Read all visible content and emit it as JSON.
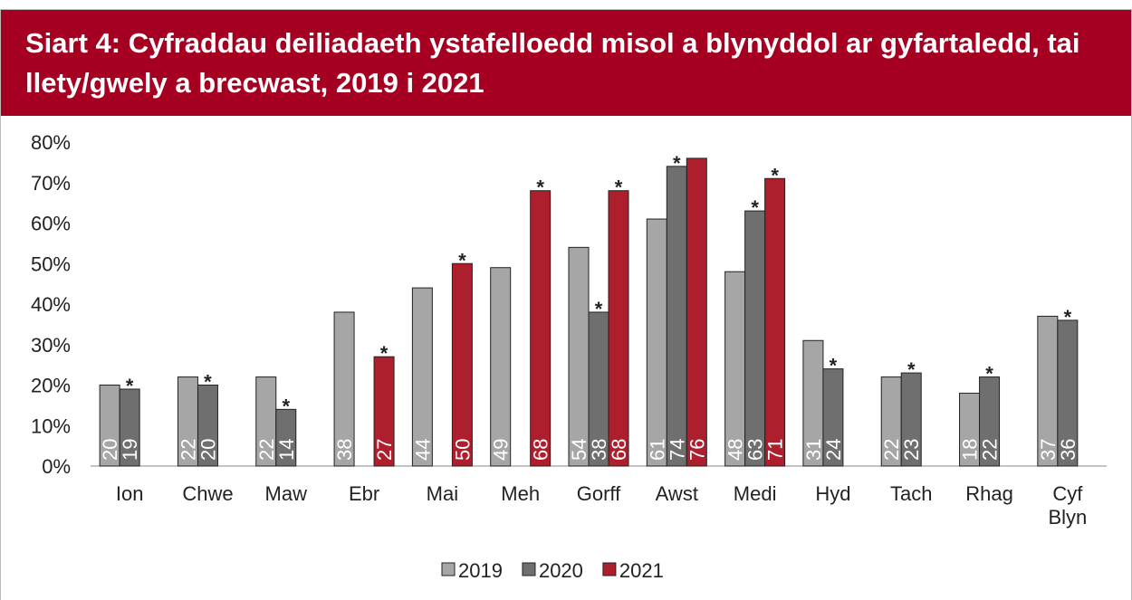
{
  "chart_data": {
    "type": "bar",
    "title": "Siart 4: Cyfraddau deiliadaeth ystafelloedd misol a blynyddol ar gyfartaledd, tai llety/gwely a brecwast, 2019 i 2021",
    "categories": [
      "Ion",
      "Chwe",
      "Maw",
      "Ebr",
      "Mai",
      "Meh",
      "Gorff",
      "Awst",
      "Medi",
      "Hyd",
      "Tach",
      "Rhag",
      "Cyf Blyn"
    ],
    "series": [
      {
        "name": "2019",
        "color": "#a6a6a6",
        "values": [
          20,
          22,
          22,
          38,
          44,
          49,
          54,
          61,
          48,
          31,
          22,
          18,
          37
        ],
        "notes": [
          null,
          null,
          null,
          null,
          null,
          null,
          null,
          null,
          null,
          null,
          null,
          null,
          null
        ]
      },
      {
        "name": "2020",
        "color": "#6f6f6f",
        "values": [
          19,
          20,
          14,
          null,
          null,
          null,
          38,
          74,
          63,
          24,
          23,
          22,
          36
        ],
        "notes": [
          "*",
          "*",
          "*",
          null,
          null,
          null,
          "*",
          "*",
          "*",
          "*",
          "*",
          "*",
          "*"
        ]
      },
      {
        "name": "2021",
        "color": "#ad1f2d",
        "values": [
          null,
          null,
          null,
          27,
          50,
          68,
          68,
          76,
          71,
          null,
          null,
          null,
          null
        ],
        "notes": [
          null,
          null,
          null,
          "*",
          "*",
          "*",
          "*",
          null,
          "*",
          null,
          null,
          null,
          null
        ]
      }
    ],
    "ylim": [
      0,
      80
    ],
    "yticks": [
      {
        "value": 0,
        "label": "0%"
      },
      {
        "value": 10,
        "label": "10%"
      },
      {
        "value": 20,
        "label": "20%"
      },
      {
        "value": 30,
        "label": "30%"
      },
      {
        "value": 40,
        "label": "40%"
      },
      {
        "value": 50,
        "label": "50%"
      },
      {
        "value": 60,
        "label": "60%"
      },
      {
        "value": 70,
        "label": "70%"
      },
      {
        "value": 80,
        "label": "80%"
      }
    ],
    "grid": false,
    "legend": "bottom"
  }
}
